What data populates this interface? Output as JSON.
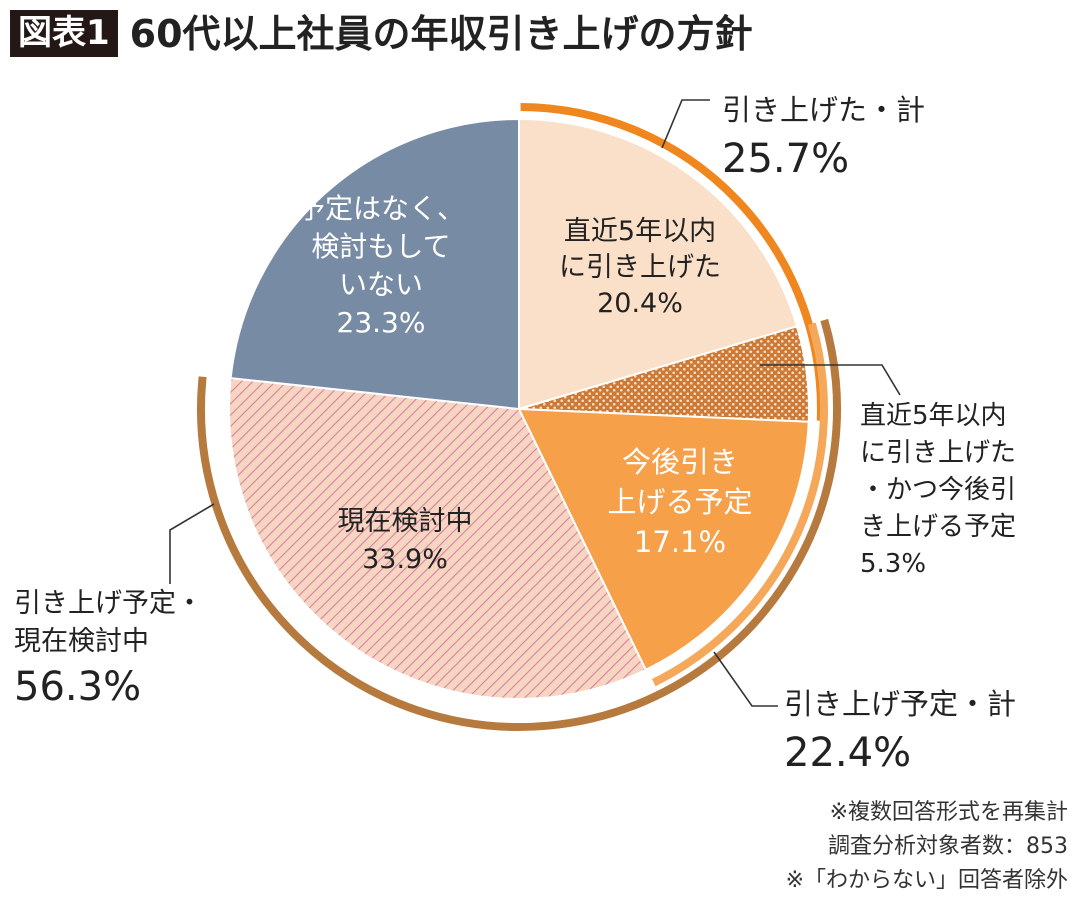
{
  "title": {
    "badge": "図表1",
    "text": "60代以上社員の年収引き上げの方針"
  },
  "notes": [
    "※複数回答形式を再集計",
    "調査分析対象者数：853",
    "※「わからない」回答者除外"
  ],
  "colors": {
    "past_raise": "#fae0c8",
    "both": "#cd7a36",
    "both_dots": "#fae0c8",
    "planned": "#f6a04a",
    "considering_bg": "#f6d6c0",
    "considering_hatch": "#d97fa6",
    "not_planned": "#778ba4",
    "ring_raised": "#f0871e",
    "ring_planned": "#f6a85a",
    "ring_plan_consider": "#b77a3e",
    "leader": "#333333",
    "label_dark": "#222222",
    "label_light": "#ffffff"
  },
  "chart_data": {
    "type": "pie",
    "start_angle_deg": 0,
    "direction": "clockwise",
    "slices": [
      {
        "id": "past_raise",
        "label_lines": [
          "直近5年以内",
          "に引き上げた"
        ],
        "value_label": "20.4%",
        "value": 20.4,
        "color_key": "past_raise",
        "fill": "solid",
        "label_color": "label_dark"
      },
      {
        "id": "both",
        "label_lines": [
          "直近5年以内",
          "に引き上げた",
          "・かつ今後引",
          "き上げる予定"
        ],
        "value_label": "5.3%",
        "value": 5.3,
        "color_key": "both",
        "fill": "dots",
        "label_color": "label_dark",
        "outside_label": true
      },
      {
        "id": "planned",
        "label_lines": [
          "今後引き",
          "上げる予定"
        ],
        "value_label": "17.1%",
        "value": 17.1,
        "color_key": "planned",
        "fill": "solid",
        "label_color": "label_light"
      },
      {
        "id": "considering",
        "label_lines": [
          "現在検討中"
        ],
        "value_label": "33.9%",
        "value": 33.9,
        "color_key": "considering_bg",
        "fill": "hatch",
        "label_color": "label_dark"
      },
      {
        "id": "not_planned",
        "label_lines": [
          "予定はなく、",
          "検討もして",
          "いない"
        ],
        "value_label": "23.3%",
        "value": 23.3,
        "color_key": "not_planned",
        "fill": "solid",
        "label_color": "label_light"
      }
    ],
    "groups": [
      {
        "id": "raised_total",
        "label": "引き上げた・計",
        "value_label": "25.7%",
        "value": 25.7,
        "slices": [
          "past_raise",
          "both"
        ],
        "ring_color_key": "ring_raised"
      },
      {
        "id": "planned_total",
        "label": "引き上げ予定・計",
        "value_label": "22.4%",
        "value": 22.4,
        "slices": [
          "both",
          "planned"
        ],
        "ring_color_key": "ring_planned"
      },
      {
        "id": "plan_or_consider_total",
        "label_lines": [
          "引き上げ予定・",
          "現在検討中"
        ],
        "value_label": "56.3%",
        "value": 56.3,
        "slices": [
          "both",
          "planned",
          "considering"
        ],
        "ring_color_key": "ring_plan_consider"
      }
    ]
  }
}
